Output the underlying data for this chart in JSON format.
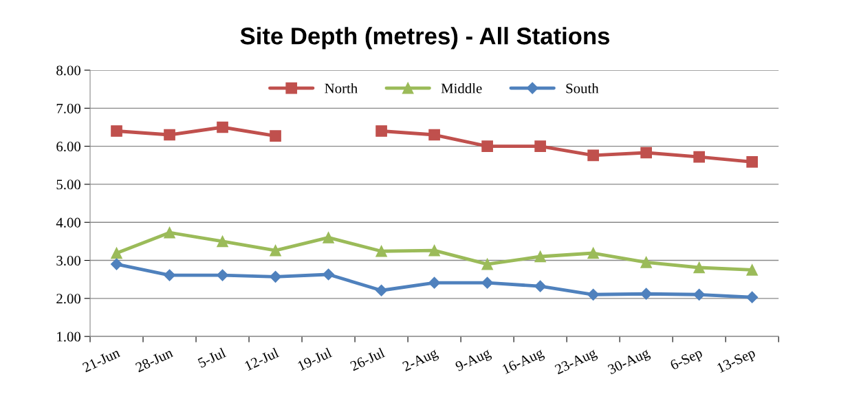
{
  "chart_data": {
    "type": "line",
    "title": "Site Depth (metres) - All Stations",
    "categories": [
      "21-Jun",
      "28-Jun",
      "5-Jul",
      "12-Jul",
      "19-Jul",
      "26-Jul",
      "2-Aug",
      "9-Aug",
      "16-Aug",
      "23-Aug",
      "30-Aug",
      "6-Sep",
      "13-Sep"
    ],
    "series": [
      {
        "name": "North",
        "color": "#c0504d",
        "marker": "square",
        "values": [
          6.4,
          6.3,
          6.5,
          6.27,
          null,
          6.4,
          6.3,
          6.0,
          6.0,
          5.76,
          5.83,
          5.72,
          5.59
        ]
      },
      {
        "name": "Middle",
        "color": "#9bbb59",
        "marker": "triangle",
        "values": [
          3.19,
          3.73,
          3.5,
          3.26,
          3.6,
          3.24,
          3.26,
          2.9,
          3.1,
          3.19,
          2.95,
          2.81,
          2.75
        ]
      },
      {
        "name": "South",
        "color": "#4f81bd",
        "marker": "diamond",
        "values": [
          2.9,
          2.61,
          2.61,
          2.57,
          2.63,
          2.21,
          2.41,
          2.41,
          2.32,
          2.1,
          2.12,
          2.1,
          2.03
        ]
      }
    ],
    "ylim": [
      1,
      8
    ],
    "yticks": [
      {
        "value": 1,
        "label": "1.00"
      },
      {
        "value": 2,
        "label": "2.00"
      },
      {
        "value": 3,
        "label": "3.00"
      },
      {
        "value": 4,
        "label": "4.00"
      },
      {
        "value": 5,
        "label": "5.00"
      },
      {
        "value": 6,
        "label": "6.00"
      },
      {
        "value": 7,
        "label": "7.00"
      },
      {
        "value": 8,
        "label": "8.00"
      }
    ],
    "grid": "y",
    "legend": "top",
    "line_style": "solid"
  }
}
